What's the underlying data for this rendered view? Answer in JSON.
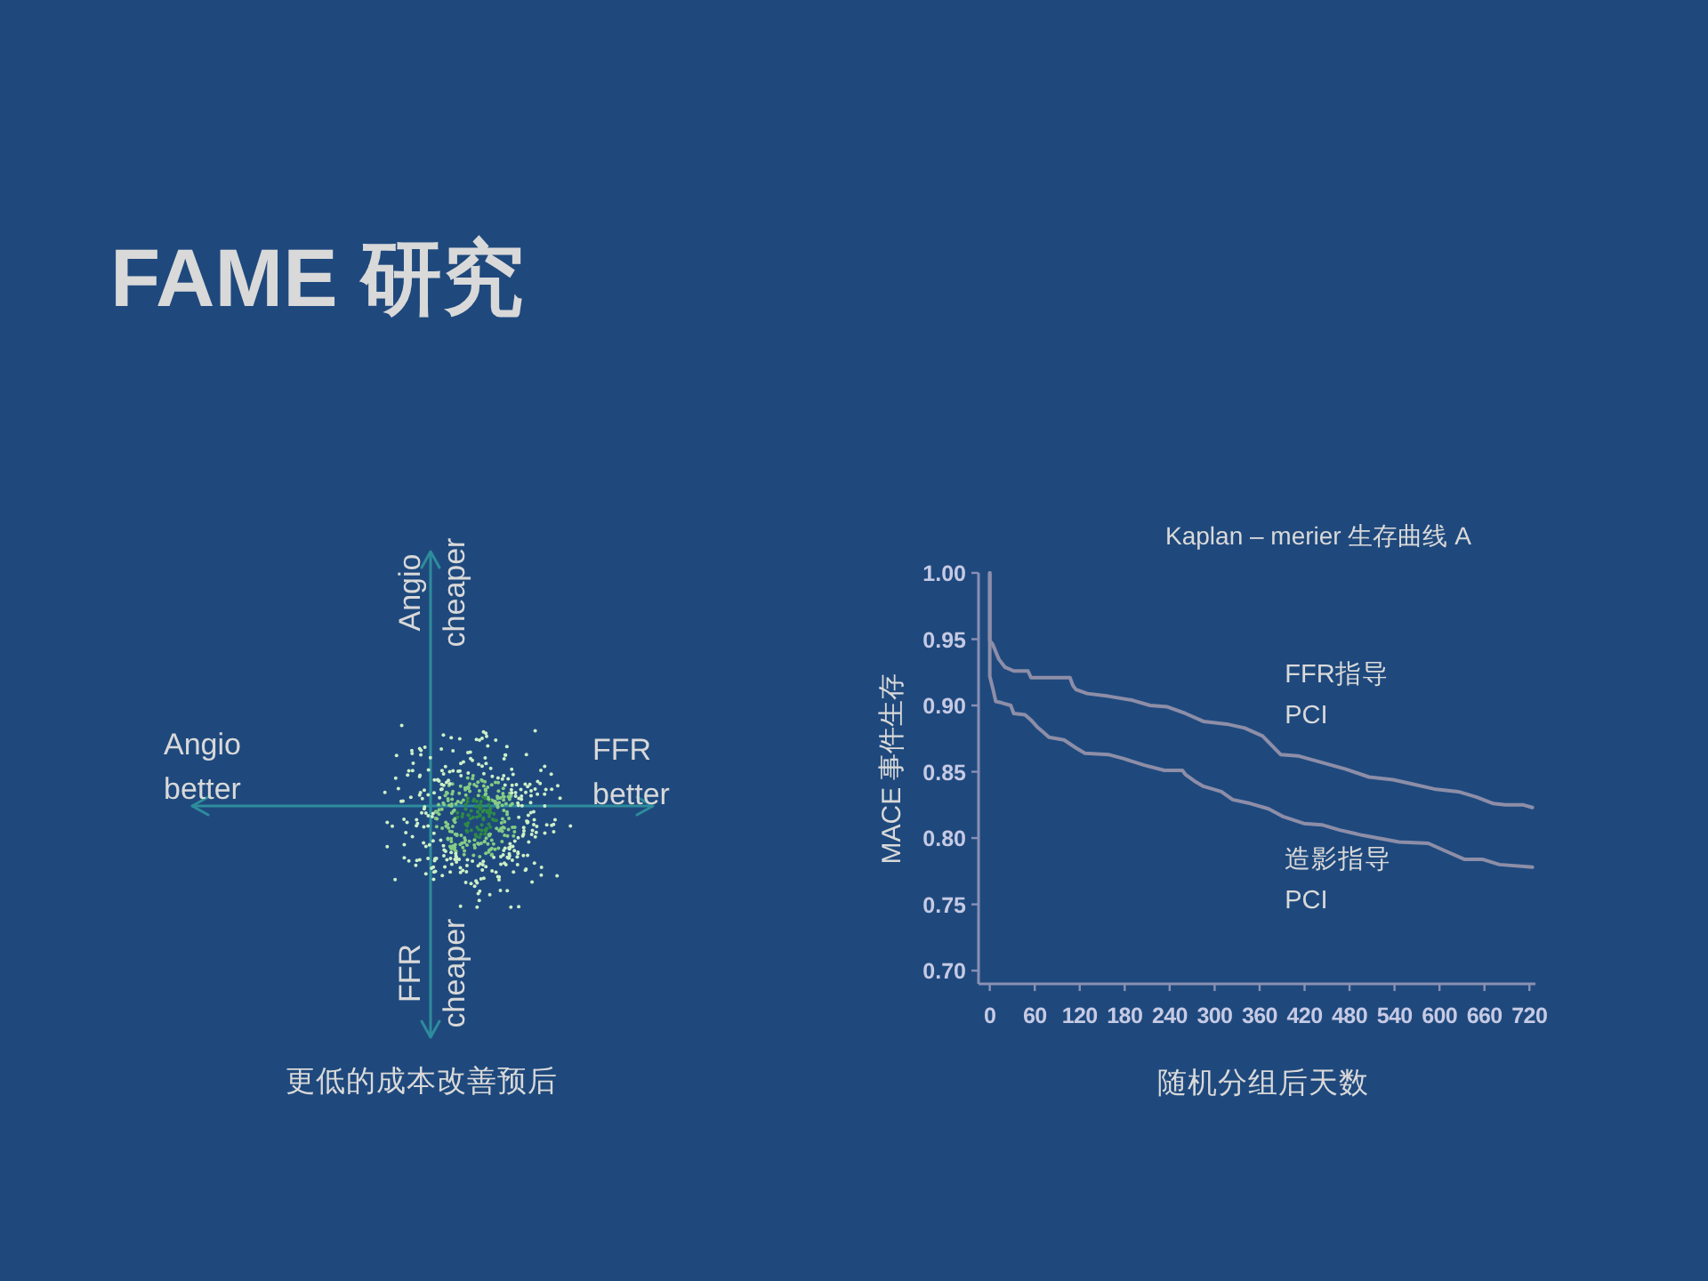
{
  "chart_data": [
    {
      "type": "other",
      "title": "FAME 研究",
      "annotations": [
        "Angio\nbetter",
        "FFR\nbetter",
        "Angio\ncheaper",
        "FFR\ncheaper",
        "更低的成本改善预后"
      ]
    },
    {
      "type": "line",
      "title": "Kaplan – merier 生存曲线 A",
      "xlabel": "随机分组后天数",
      "ylabel": "MACE 事件生存",
      "xlim": [
        -15,
        728
      ],
      "ylim": [
        0.69,
        1.0
      ],
      "xticks": [
        0,
        60,
        120,
        180,
        240,
        300,
        360,
        420,
        480,
        540,
        600,
        660,
        720
      ],
      "yticks": [
        {
          "value": 0.7,
          "label": "0.70"
        },
        {
          "value": 0.75,
          "label": "0.75"
        },
        {
          "value": 0.8,
          "label": "0.80"
        },
        {
          "value": 0.85,
          "label": "0.85"
        },
        {
          "value": 0.9,
          "label": "0.90"
        },
        {
          "value": 0.95,
          "label": "0.95"
        },
        {
          "value": 1,
          "label": "1.00"
        }
      ],
      "series": [
        {
          "name": "FFR指导\nPCI",
          "color": "#8e8ea8",
          "x": [
            0,
            0,
            4,
            12,
            20,
            32,
            51,
            55,
            79,
            107,
            111,
            115,
            130,
            158,
            190,
            214,
            237,
            261,
            285,
            316,
            340,
            364,
            388,
            411,
            443,
            475,
            506,
            538,
            562,
            593,
            625,
            649,
            672,
            688,
            712,
            724
          ],
          "values": [
            1.0,
            0.949,
            0.946,
            0.935,
            0.929,
            0.926,
            0.926,
            0.921,
            0.921,
            0.921,
            0.915,
            0.912,
            0.909,
            0.907,
            0.904,
            0.9,
            0.899,
            0.894,
            0.888,
            0.886,
            0.883,
            0.877,
            0.863,
            0.862,
            0.857,
            0.852,
            0.846,
            0.844,
            0.841,
            0.837,
            0.835,
            0.831,
            0.826,
            0.825,
            0.825,
            0.823
          ]
        },
        {
          "name": "造影指导\nPCI",
          "color": "#8e8ea8",
          "x": [
            0,
            0,
            4,
            8,
            16,
            28,
            32,
            47,
            55,
            63,
            71,
            79,
            99,
            115,
            127,
            158,
            178,
            206,
            233,
            257,
            261,
            273,
            285,
            309,
            324,
            348,
            372,
            392,
            419,
            443,
            467,
            498,
            546,
            585,
            609,
            633,
            657,
            680,
            724
          ],
          "values": [
            1.0,
            0.922,
            0.913,
            0.903,
            0.902,
            0.9,
            0.894,
            0.893,
            0.889,
            0.884,
            0.88,
            0.876,
            0.874,
            0.868,
            0.864,
            0.863,
            0.86,
            0.855,
            0.851,
            0.851,
            0.848,
            0.843,
            0.839,
            0.835,
            0.829,
            0.826,
            0.822,
            0.816,
            0.811,
            0.81,
            0.806,
            0.802,
            0.797,
            0.796,
            0.79,
            0.784,
            0.784,
            0.78,
            0.778
          ]
        }
      ]
    }
  ]
}
